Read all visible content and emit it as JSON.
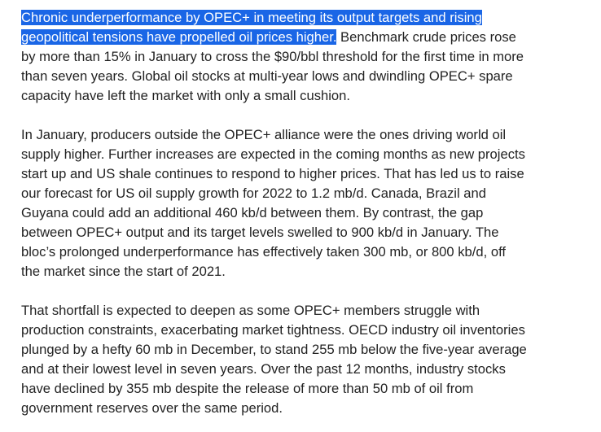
{
  "paragraphs": [
    {
      "lines": [
        {
          "selected": "Chronic underperformance by OPEC+ in meeting its output targets and rising",
          "rest": ""
        },
        {
          "selected": "geopolitical tensions have propelled oil prices higher.",
          "rest": " Benchmark crude prices rose"
        },
        {
          "selected": "",
          "rest": "by more than 15% in January to cross the $90/bbl threshold for the first time in more"
        },
        {
          "selected": "",
          "rest": "than seven years. Global oil stocks at multi-year lows and dwindling OPEC+ spare"
        },
        {
          "selected": "",
          "rest": "capacity have left the market with only a small cushion."
        }
      ]
    },
    {
      "lines": [
        "In January, producers outside the OPEC+ alliance were the ones driving world oil",
        "supply higher. Further increases are expected in the coming months as new projects",
        "start up and US shale continues to respond to higher prices. That has led us to raise",
        "our forecast for US oil supply growth for 2022 to 1.2 mb/d. Canada, Brazil and",
        "Guyana could add an additional 460 kb/d between them. By contrast, the gap",
        "between OPEC+ output and its target levels swelled to 900 kb/d in January. The",
        "bloc’s prolonged underperformance has effectively taken 300 mb, or 800 kb/d, off",
        "the market since the start of 2021."
      ]
    },
    {
      "lines": [
        "That shortfall is expected to deepen as some OPEC+ members struggle with",
        "production constraints, exacerbating market tightness. OECD industry oil inventories",
        "plunged by a hefty 60 mb in December, to stand 255 mb below the five-year average",
        "and at their lowest level in seven years. Over the past 12 months, industry stocks",
        "have declined by 355 mb despite the release of more than 50 mb of oil from",
        "government reserves over the same period."
      ]
    }
  ],
  "colors": {
    "text": "#222222",
    "selection_background": "#1a66e6",
    "selection_text": "#ffffff"
  }
}
